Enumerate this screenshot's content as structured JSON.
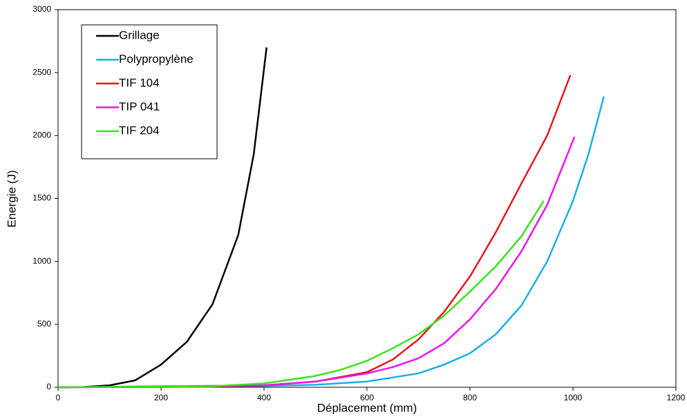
{
  "chart_data": {
    "type": "line",
    "x_label": "Déplacement (mm)",
    "y_label": "Energie (J)",
    "xlim": [
      0,
      1200
    ],
    "xticks": [
      0,
      200,
      400,
      600,
      800,
      1000,
      1200
    ],
    "ylim": [
      0,
      3000
    ],
    "yticks": [
      0,
      500,
      1000,
      1500,
      2000,
      2500,
      3000
    ],
    "grid": false,
    "legend_position": "upper-left",
    "series": [
      {
        "name": "Grillage",
        "color": "#000000",
        "x": [
          0,
          50,
          100,
          150,
          200,
          250,
          300,
          350,
          380,
          405
        ],
        "values": [
          0,
          2,
          15,
          55,
          180,
          360,
          660,
          1210,
          1850,
          2700
        ]
      },
      {
        "name": "Polypropylène",
        "color": "#1aaee6",
        "x": [
          0,
          200,
          400,
          500,
          600,
          700,
          750,
          800,
          850,
          900,
          950,
          1000,
          1030,
          1060
        ],
        "values": [
          0,
          2,
          10,
          20,
          45,
          110,
          180,
          270,
          420,
          650,
          1000,
          1480,
          1850,
          2310
        ]
      },
      {
        "name": "TIF 104",
        "color": "#e8141a",
        "x": [
          0,
          300,
          400,
          500,
          600,
          650,
          700,
          750,
          800,
          850,
          900,
          950,
          995
        ],
        "values": [
          0,
          5,
          15,
          45,
          120,
          220,
          380,
          600,
          880,
          1230,
          1620,
          2000,
          2480
        ]
      },
      {
        "name": "TIP 041",
        "color": "#ee11ee",
        "x": [
          0,
          400,
          500,
          600,
          650,
          700,
          750,
          800,
          850,
          900,
          950,
          1003
        ],
        "values": [
          0,
          15,
          45,
          110,
          160,
          230,
          350,
          540,
          780,
          1080,
          1450,
          1990
        ]
      },
      {
        "name": "TIF 204",
        "color": "#33e61a",
        "x": [
          0,
          300,
          400,
          500,
          550,
          600,
          650,
          700,
          750,
          800,
          850,
          900,
          943
        ],
        "values": [
          0,
          8,
          30,
          90,
          140,
          210,
          310,
          420,
          570,
          760,
          960,
          1200,
          1480
        ]
      }
    ]
  }
}
